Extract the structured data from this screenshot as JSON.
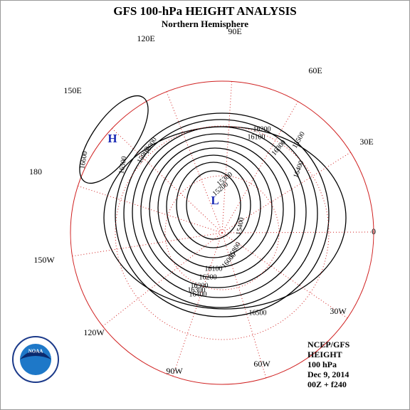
{
  "header": {
    "title": "GFS 100-hPa HEIGHT ANALYSIS",
    "subtitle": "Northern Hemisphere"
  },
  "longitude_labels": [
    "90E",
    "60E",
    "30E",
    "0",
    "30W",
    "60W",
    "90W",
    "120W",
    "150W",
    "180",
    "150E",
    "120E"
  ],
  "contour_labels": [
    16200,
    16100,
    16300,
    16500,
    16400,
    16600,
    16500,
    16300,
    15900,
    16000,
    15300,
    15200,
    15400,
    15800,
    16000,
    16100,
    16200,
    16300,
    16400,
    16500
  ],
  "centers": {
    "high": "H",
    "low": "L"
  },
  "info": [
    "NCEP/GFS",
    "HEIGHT",
    "100 hPa",
    "Dec 9, 2014",
    "00Z + f240"
  ]
}
